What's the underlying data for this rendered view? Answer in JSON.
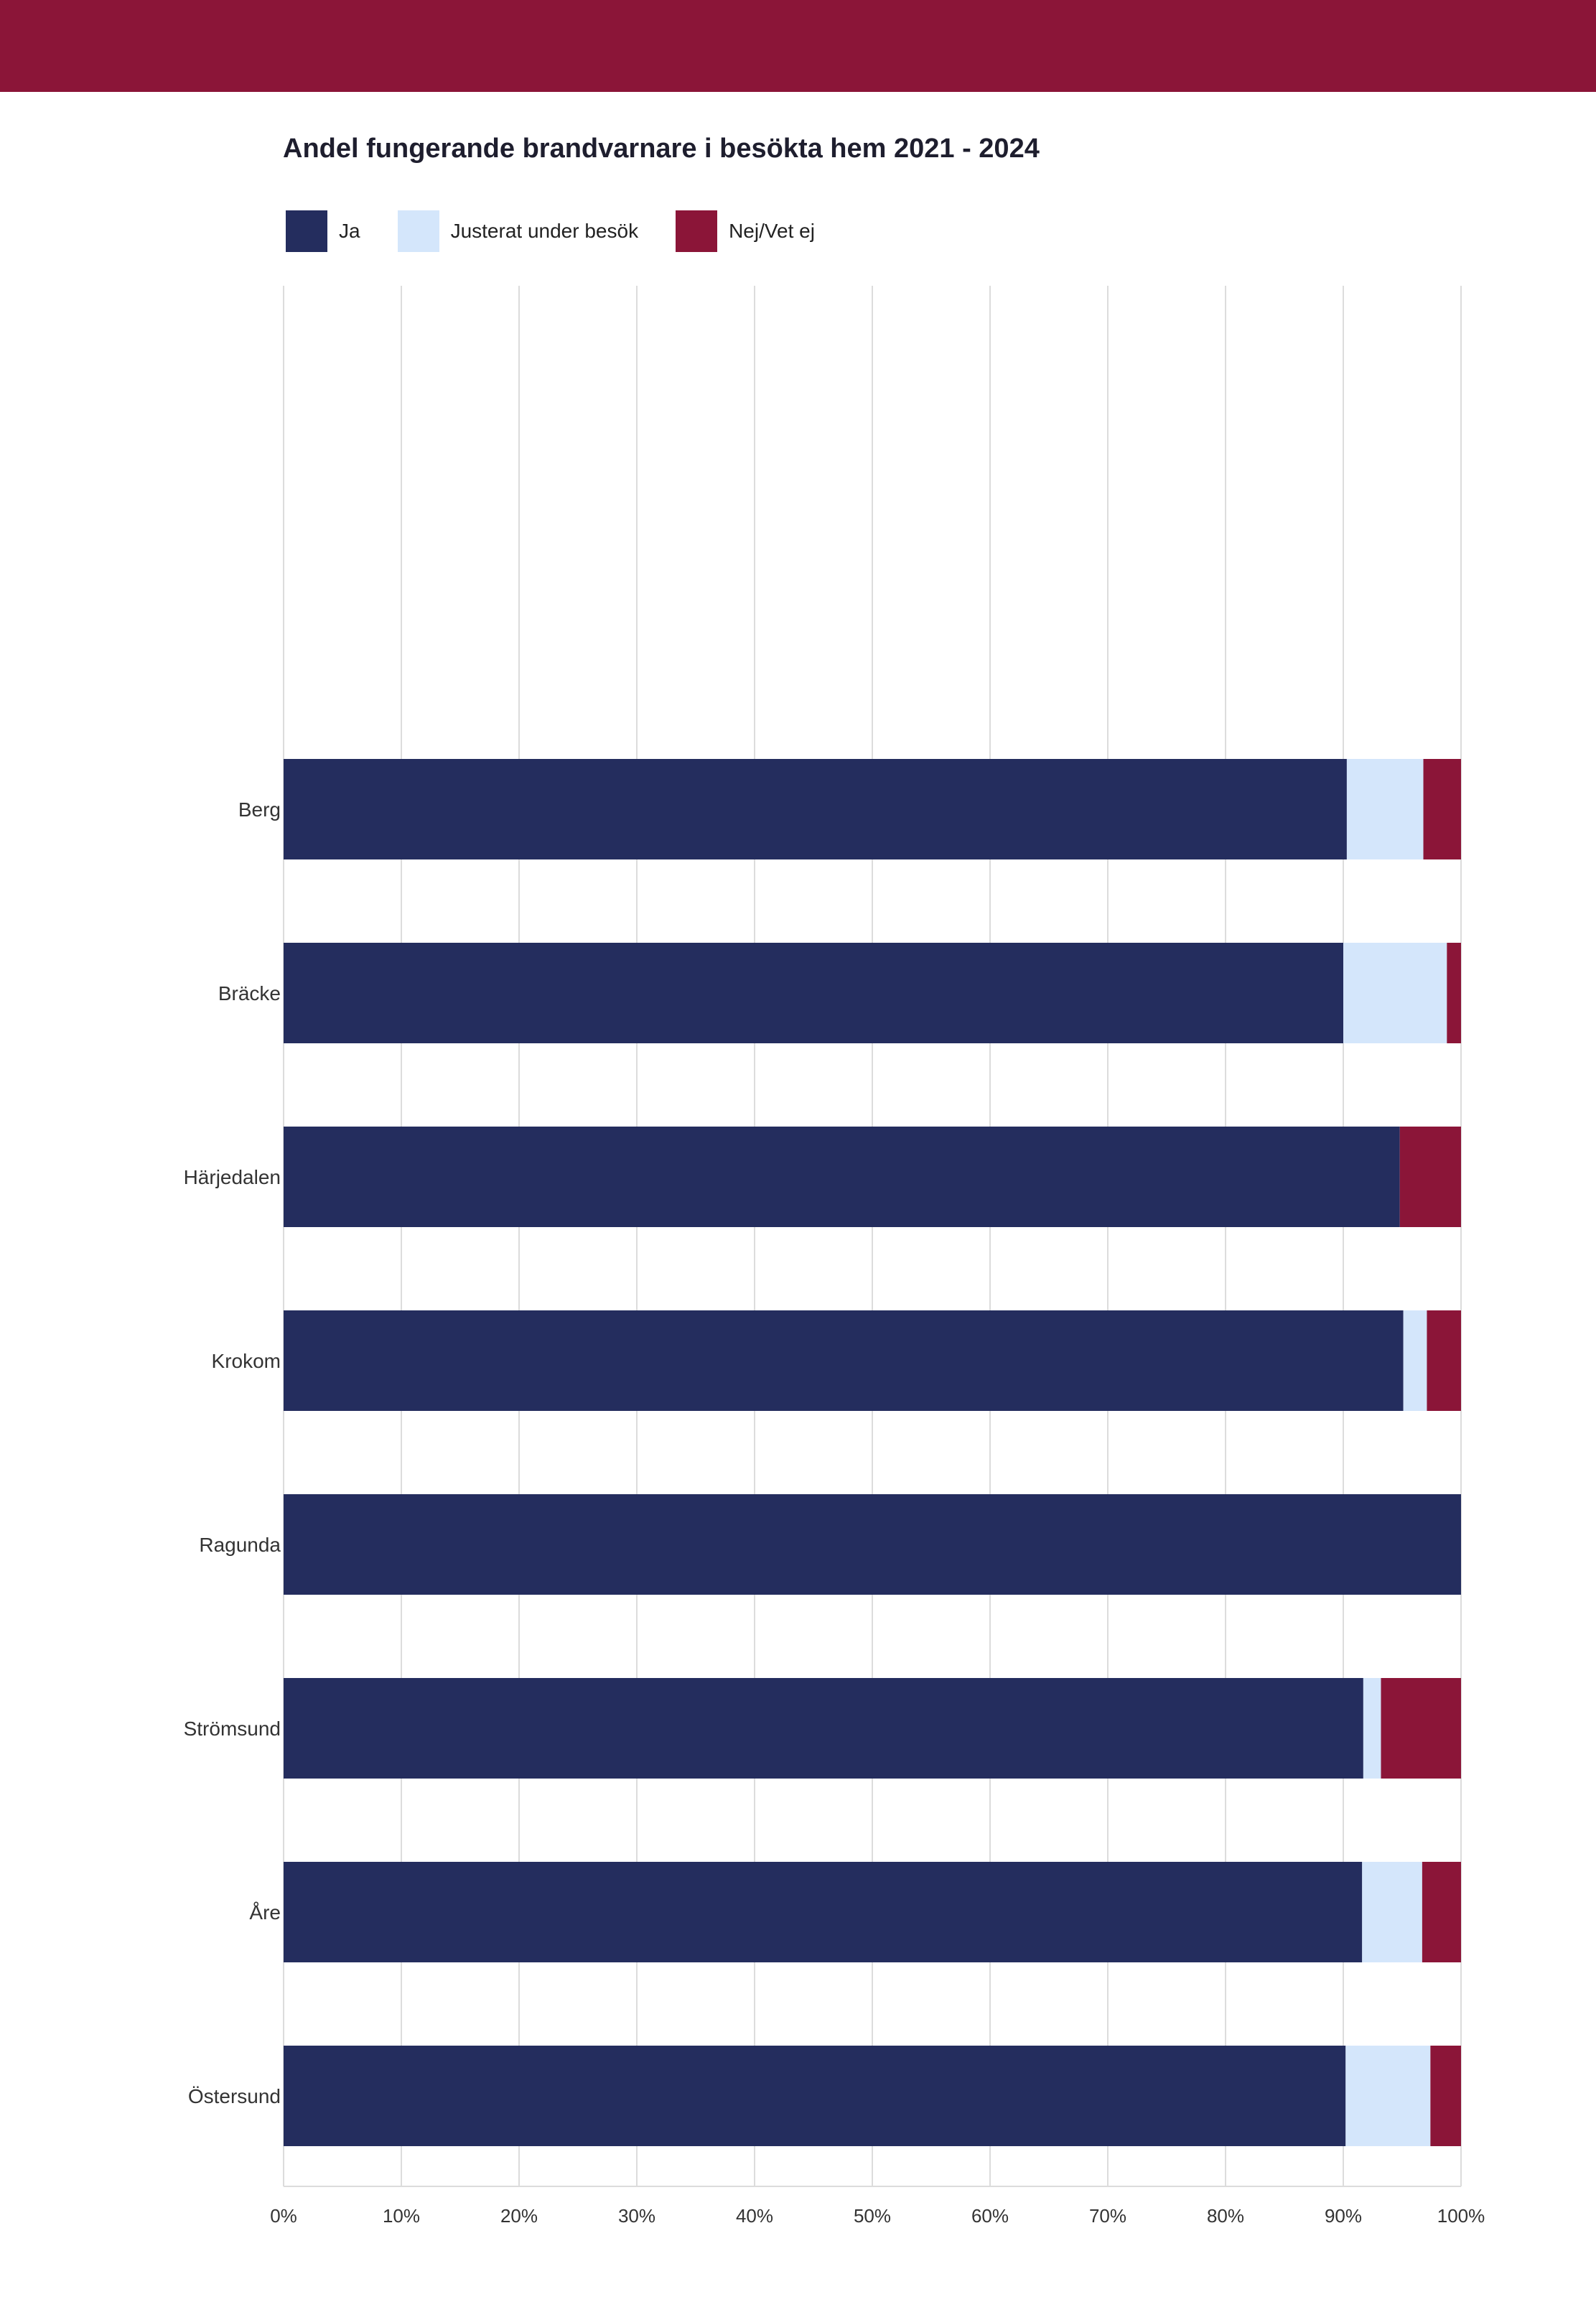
{
  "colors": {
    "top_band": "#8b1538",
    "ja": "#242d5e",
    "justerat": "#d4e6fb",
    "nej": "#8b1538",
    "grid": "#dcdcdc"
  },
  "chart_data": {
    "type": "bar",
    "orientation": "horizontal",
    "stacked": true,
    "title": "Andel fungerande brandvarnare i besökta hem 2021 - 2024",
    "categories": [
      "Berg",
      "Bräcke",
      "Härjedalen",
      "Krokom",
      "Ragunda",
      "Strömsund",
      "Åre",
      "Östersund"
    ],
    "series": [
      {
        "name": "Ja",
        "values": [
          90.3,
          90.0,
          94.8,
          95.1,
          100,
          91.7,
          91.6,
          90.2
        ]
      },
      {
        "name": "Justerat under besök",
        "values": [
          6.5,
          8.8,
          0,
          2.0,
          0,
          1.5,
          5.1,
          7.2
        ]
      },
      {
        "name": "Nej/Vet ej",
        "values": [
          3.2,
          1.2,
          5.2,
          2.9,
          0,
          6.8,
          3.3,
          2.6
        ]
      }
    ],
    "xlim": [
      0,
      100
    ],
    "x_ticks": [
      "0%",
      "10%",
      "20%",
      "30%",
      "40%",
      "50%",
      "60%",
      "70%",
      "80%",
      "90%",
      "100%"
    ],
    "grid": true,
    "legend_position": "top-left"
  }
}
